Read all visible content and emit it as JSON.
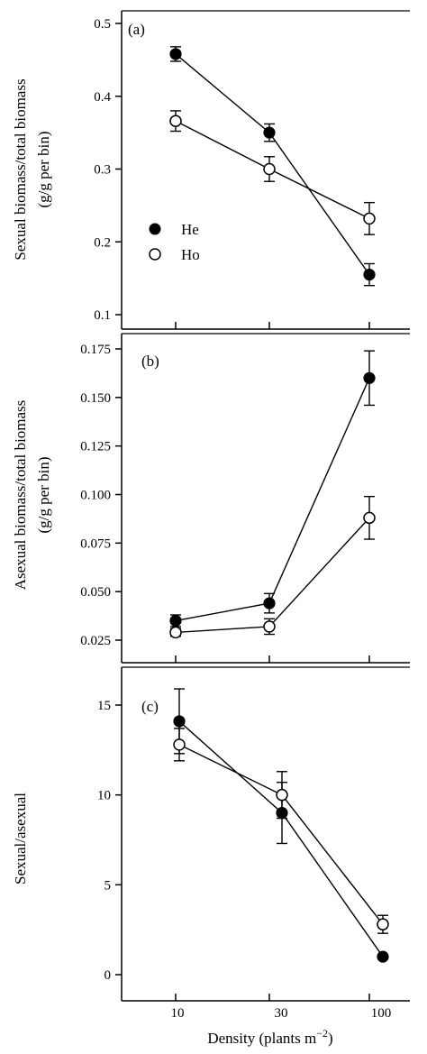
{
  "chart_data": [
    {
      "type": "line",
      "panel_label": "(a)",
      "x": [
        10,
        30,
        100
      ],
      "ylabel_line1": "Sexual biomass/total biomass",
      "ylabel_line2": "(g/g per bin)",
      "ylim": [
        0.1,
        0.5
      ],
      "yticks": [
        "0.1",
        "0.2",
        "0.3",
        "0.4",
        "0.5"
      ],
      "legend_position": "left-middle",
      "series": [
        {
          "name": "He",
          "marker": "filled-circle",
          "values": [
            0.458,
            0.35,
            0.155
          ],
          "errors": [
            0.01,
            0.012,
            0.015
          ]
        },
        {
          "name": "Ho",
          "marker": "open-circle",
          "values": [
            0.366,
            0.3,
            0.232
          ],
          "errors": [
            0.014,
            0.017,
            0.022
          ]
        }
      ]
    },
    {
      "type": "line",
      "panel_label": "(b)",
      "x": [
        10,
        30,
        100
      ],
      "ylabel_line1": "Asexual biomass/total biomass",
      "ylabel_line2": "(g/g per bin)",
      "ylim": [
        0.02,
        0.18
      ],
      "yticks": [
        "0.025",
        "0.050",
        "0.075",
        "0.100",
        "0.125",
        "0.150",
        "0.175"
      ],
      "series": [
        {
          "name": "He",
          "marker": "filled-circle",
          "values": [
            0.035,
            0.044,
            0.16
          ],
          "errors": [
            0.003,
            0.005,
            0.014
          ]
        },
        {
          "name": "Ho",
          "marker": "open-circle",
          "values": [
            0.029,
            0.032,
            0.088
          ],
          "errors": [
            0.002,
            0.004,
            0.011
          ]
        }
      ]
    },
    {
      "type": "line",
      "panel_label": "(c)",
      "x": [
        10,
        30,
        100
      ],
      "ylabel_line1": "Sexual/asexual",
      "ylim": [
        -1,
        17
      ],
      "yticks": [
        "0",
        "5",
        "10",
        "15"
      ],
      "series": [
        {
          "name": "He",
          "marker": "filled-circle",
          "values": [
            14.1,
            9.0,
            1.0
          ],
          "errors": [
            1.8,
            1.7,
            0.1
          ]
        },
        {
          "name": "Ho",
          "marker": "open-circle",
          "values": [
            12.8,
            10.0,
            2.8
          ],
          "errors": [
            0.9,
            1.3,
            0.5
          ]
        }
      ]
    }
  ],
  "xaxis": {
    "ticks": [
      "10",
      "30",
      "100"
    ],
    "label_prefix": "Density (plants m",
    "label_superscript": "−2",
    "label_suffix": ")"
  }
}
